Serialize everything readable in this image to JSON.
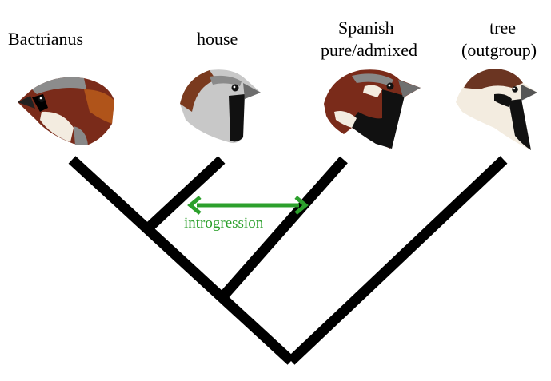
{
  "taxa": [
    {
      "id": "bactrianus",
      "label": "Bactrianus"
    },
    {
      "id": "house",
      "label": "house"
    },
    {
      "id": "spanish",
      "label_line1": "Spanish",
      "label_line2": "pure/admixed"
    },
    {
      "id": "tree",
      "label_line1": "tree",
      "label_line2": "(outgroup)"
    }
  ],
  "introgression": {
    "label": "introgression",
    "color": "#2ca02c",
    "between": [
      "house",
      "spanish"
    ]
  },
  "colors": {
    "tree_lines": "#000000",
    "arrow": "#2ca02c"
  }
}
